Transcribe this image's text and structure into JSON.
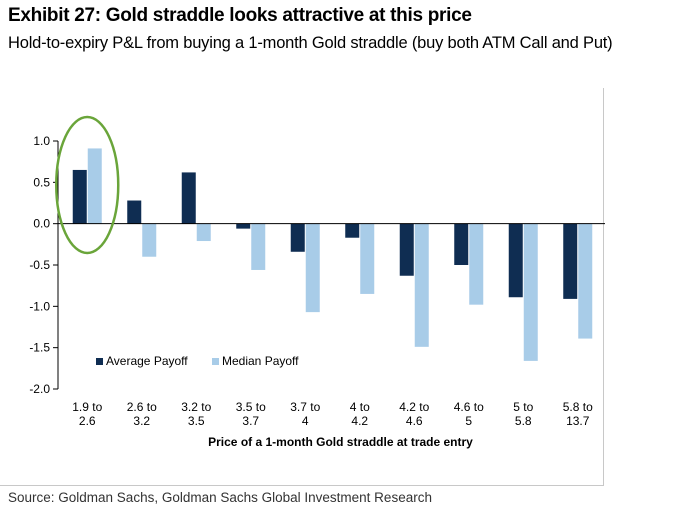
{
  "header": {
    "title": "Exhibit 27: Gold straddle looks attractive at this price",
    "subtitle": "Hold-to-expiry P&L from buying a 1-month Gold straddle (buy both ATM Call and Put)"
  },
  "footer": {
    "source": "Source: Goldman Sachs, Goldman Sachs Global Investment Research"
  },
  "chart_data": {
    "type": "bar",
    "categories": [
      [
        "1.9 to",
        "2.6"
      ],
      [
        "2.6 to",
        "3.2"
      ],
      [
        "3.2 to",
        "3.5"
      ],
      [
        "3.5 to",
        "3.7"
      ],
      [
        "3.7 to",
        "4"
      ],
      [
        "4 to",
        "4.2"
      ],
      [
        "4.2 to",
        "4.6"
      ],
      [
        "4.6 to",
        "5"
      ],
      [
        "5 to",
        "5.8"
      ],
      [
        "5.8 to",
        "13.7"
      ]
    ],
    "series": [
      {
        "name": "Average Payoff",
        "color": "#0f2d52",
        "values": [
          0.65,
          0.28,
          0.62,
          -0.06,
          -0.34,
          -0.17,
          -0.63,
          -0.5,
          -0.89,
          -0.91
        ]
      },
      {
        "name": "Median Payoff",
        "color": "#a8cce8",
        "values": [
          0.91,
          -0.4,
          -0.21,
          -0.56,
          -1.07,
          -0.85,
          -1.49,
          -0.98,
          -1.66,
          -1.39
        ]
      }
    ],
    "xlabel": "Price of a 1-month Gold straddle at trade entry",
    "ylabel": "",
    "ylim": [
      -2.0,
      1.0
    ],
    "yticks": [
      "1.0",
      "0.5",
      "0.0",
      "-0.5",
      "-1.0",
      "-1.5",
      "-2.0"
    ],
    "legend_position": "bottom-left",
    "highlight": {
      "category_index": 0,
      "color": "#6aa53a",
      "shape": "ellipse"
    }
  }
}
